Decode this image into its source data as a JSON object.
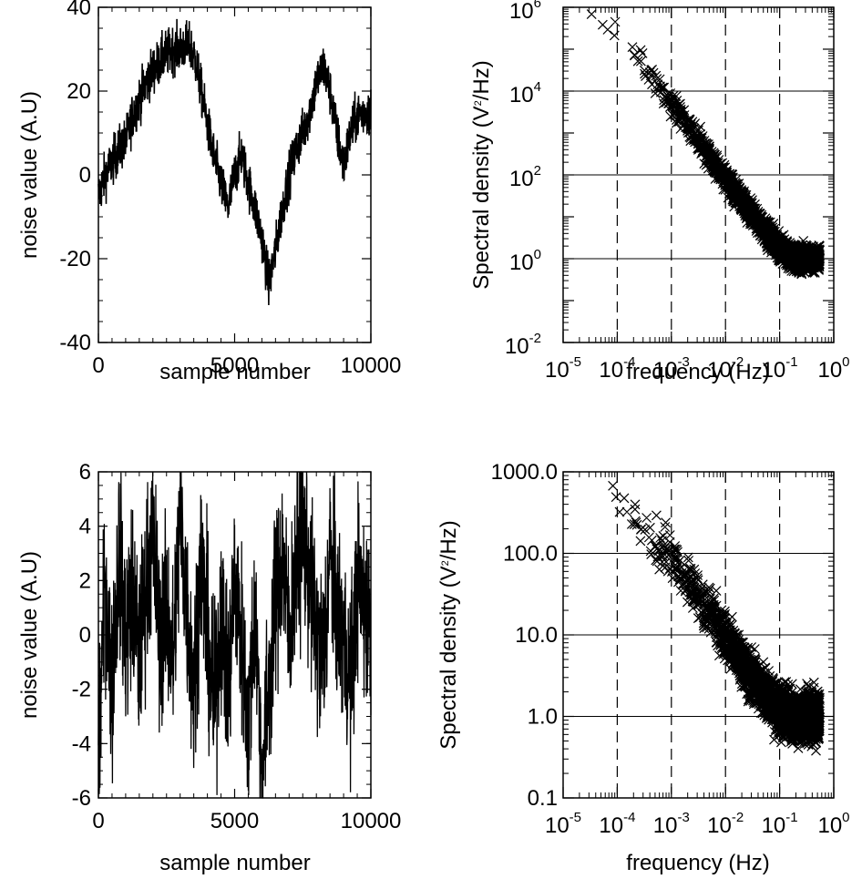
{
  "chart_data": [
    {
      "type": "line",
      "xlabel": "sample number",
      "ylabel": "noise value (A.U)",
      "xlim": [
        0,
        10000
      ],
      "ylim": [
        -40,
        40
      ],
      "xticks": [
        0,
        5000,
        10000
      ],
      "xtick_labels": [
        "0",
        "5000",
        "10000"
      ],
      "yticks": [
        -40,
        -20,
        0,
        20,
        40
      ],
      "ytick_labels": [
        "-40",
        "-20",
        "0",
        "20",
        "40"
      ],
      "grid": false,
      "series": [
        {
          "x": [
            0,
            250,
            500,
            750,
            1000,
            1250,
            1500,
            1750,
            2000,
            2250,
            2500,
            2750,
            3000,
            3250,
            3500,
            3750,
            4000,
            4250,
            4500,
            4750,
            5000,
            5250,
            5500,
            5750,
            6000,
            6250,
            6500,
            6750,
            7000,
            7250,
            7500,
            7750,
            8000,
            8250,
            8500,
            8750,
            9000,
            9250,
            9500,
            9750,
            10000
          ],
          "y": [
            -5,
            0,
            3,
            6,
            8,
            14,
            18,
            22,
            25,
            27,
            29,
            30,
            30,
            31,
            29,
            21,
            12,
            4,
            -2,
            -8,
            0,
            5,
            -2,
            -8,
            -15,
            -26,
            -18,
            -8,
            0,
            6,
            10,
            15,
            22,
            26,
            20,
            10,
            2,
            10,
            14,
            15,
            15
          ]
        }
      ]
    },
    {
      "type": "scatter",
      "marker": "x",
      "xlabel": "frequency (Hz)",
      "ylabel_main": "Spectral density (V",
      "ylabel_sup": "2",
      "ylabel_tail": "/Hz)",
      "x_scale": "log",
      "y_scale": "log",
      "xlim": [
        1e-05,
        1
      ],
      "ylim": [
        0.01,
        1000000
      ],
      "xtick_base": [
        "10",
        "10",
        "10",
        "10",
        "10",
        "10"
      ],
      "xtick_exp": [
        "-5",
        "-4",
        "-3",
        "-2",
        "-1",
        "0"
      ],
      "ytick_base": [
        "10",
        "10",
        "10",
        "10",
        "10"
      ],
      "ytick_exp": [
        "-2",
        "0",
        "2",
        "4",
        "6"
      ],
      "grid": "dashed verticals at decades, solid horizontals at labeled y ticks",
      "series": [
        {
          "x": [
            1e-05,
            3e-05,
            0.0001,
            0.0003,
            0.001,
            0.003,
            0.01,
            0.03,
            0.1,
            0.2,
            0.5
          ],
          "y": [
            1000000,
            900000,
            300000,
            50000,
            5000,
            700,
            80,
            12,
            1.8,
            1,
            1
          ]
        }
      ]
    },
    {
      "type": "line",
      "xlabel": "sample number",
      "ylabel": "noise value (A.U)",
      "xlim": [
        0,
        10000
      ],
      "ylim": [
        -6,
        6
      ],
      "xticks": [
        0,
        5000,
        10000
      ],
      "xtick_labels": [
        "0",
        "5000",
        "10000"
      ],
      "yticks": [
        -6,
        -4,
        -2,
        0,
        2,
        4,
        6
      ],
      "ytick_labels": [
        "-6",
        "-4",
        "-2",
        "0",
        "2",
        "4",
        "6"
      ],
      "grid": false,
      "series": [
        {
          "x": [
            0,
            250,
            500,
            750,
            1000,
            1250,
            1500,
            1750,
            2000,
            2250,
            2500,
            2750,
            3000,
            3250,
            3500,
            3750,
            4000,
            4250,
            4500,
            4750,
            5000,
            5250,
            5500,
            5750,
            6000,
            6250,
            6500,
            6750,
            7000,
            7250,
            7500,
            7750,
            8000,
            8250,
            8500,
            8750,
            9000,
            9250,
            9500,
            9750,
            10000
          ],
          "y": [
            -4.2,
            2,
            -2,
            3,
            0,
            1.5,
            -1,
            2,
            3.5,
            0,
            1,
            -1,
            4.5,
            1,
            -2,
            3,
            0,
            -3,
            1,
            -2,
            2,
            0,
            -3.5,
            1,
            -5.2,
            -2,
            1,
            3,
            0,
            2.5,
            4,
            2,
            0,
            -1,
            3,
            1,
            0,
            -2,
            2,
            1,
            0.5
          ]
        }
      ]
    },
    {
      "type": "scatter",
      "marker": "x",
      "xlabel": "frequency (Hz)",
      "ylabel_main": "Spectral density (V",
      "ylabel_sup": "2",
      "ylabel_tail": "/Hz)",
      "x_scale": "log",
      "y_scale": "log",
      "xlim": [
        1e-05,
        1
      ],
      "ylim": [
        0.1,
        1000
      ],
      "xtick_base": [
        "10",
        "10",
        "10",
        "10",
        "10",
        "10"
      ],
      "xtick_exp": [
        "-5",
        "-4",
        "-3",
        "-2",
        "-1",
        "0"
      ],
      "yticks": [
        0.1,
        1,
        10,
        100,
        1000
      ],
      "ytick_labels": [
        "0.1",
        "1.0",
        "10.0",
        "100.0",
        "1000.0"
      ],
      "grid": "dashed verticals at decades, solid horizontals at labeled y ticks",
      "series": [
        {
          "x": [
            1e-05,
            3e-05,
            0.0001,
            0.0003,
            0.001,
            0.003,
            0.01,
            0.03,
            0.1,
            0.2,
            0.5
          ],
          "y": [
            1000,
            900,
            500,
            200,
            90,
            30,
            10,
            3,
            1.2,
            1,
            1
          ]
        }
      ]
    }
  ]
}
